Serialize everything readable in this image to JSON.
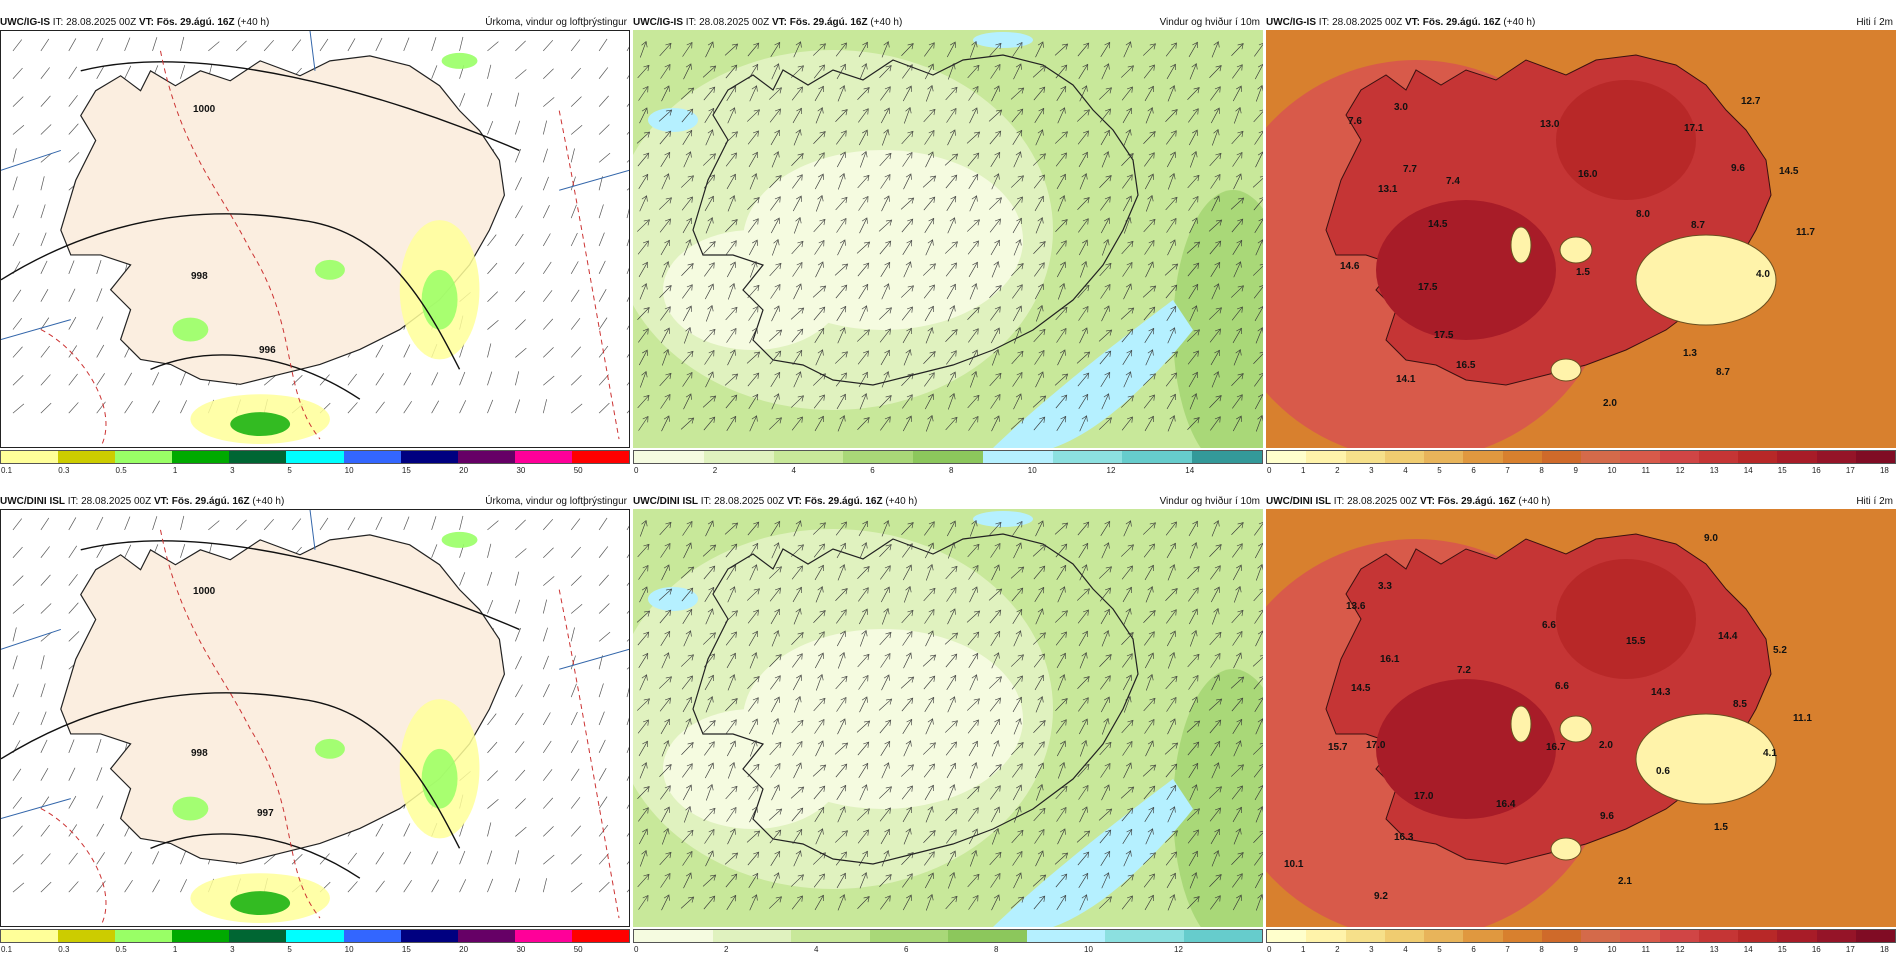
{
  "panels": [
    {
      "model": "UWC/IG-IS",
      "it": "IT: 28.08.2025 00Z",
      "vt": "VT: Fös. 29.ágú. 16Z",
      "lead": "(+40 h)",
      "title": "Úrkoma, vindur og loftþrýstingur",
      "colorbar": [
        "#ffff99",
        "#cccc00",
        "#99ff66",
        "#00aa00",
        "#006633",
        "#00ffff",
        "#3366ff",
        "#000080",
        "#660066",
        "#ff0099",
        "#ff0000"
      ],
      "ticks": [
        "0.1",
        "0.3",
        "0.5",
        "1",
        "3",
        "5",
        "10",
        "15",
        "20",
        "30",
        "50"
      ],
      "labels": [
        "996",
        "1000",
        "998"
      ]
    },
    {
      "model": "UWC/IG-IS",
      "it": "IT: 28.08.2025 00Z",
      "vt": "VT: Fös. 29.ágú. 16Z",
      "lead": "(+40 h)",
      "title": "Vindur og hviður í 10m",
      "colorbar": [
        "#f5fbe0",
        "#e0f2bf",
        "#c8e89a",
        "#a9d878",
        "#8cc75c",
        "#b5f0ff",
        "#8ce0e0",
        "#66cccc",
        "#339999"
      ],
      "ticks": [
        "0",
        "2",
        "4",
        "6",
        "8",
        "10",
        "12",
        "14"
      ],
      "labels": []
    },
    {
      "model": "UWC/IG-IS",
      "it": "IT: 28.08.2025 00Z",
      "vt": "VT: Fös. 29.ágú. 16Z",
      "lead": "(+40 h)",
      "title": "Hiti í 2m",
      "colorbar": [
        "#ffffcc",
        "#fff3aa",
        "#f6e08a",
        "#f0cc70",
        "#e8b45a",
        "#e0983f",
        "#d8802e",
        "#cf6a2a",
        "#d46a4a",
        "#d85a4a",
        "#d04545",
        "#c53535",
        "#b82828",
        "#a81c28",
        "#951428",
        "#800c24"
      ],
      "ticks": [
        "0",
        "1",
        "2",
        "3",
        "4",
        "5",
        "6",
        "7",
        "8",
        "9",
        "10",
        "11",
        "12",
        "13",
        "14",
        "15",
        "16",
        "17",
        "18"
      ],
      "labels": [
        "7.6",
        "3.0",
        "13.0",
        "17.1",
        "12.7",
        "13.1",
        "7.7",
        "7.4",
        "16.0",
        "9.6",
        "14.5",
        "14.5",
        "8.0",
        "8.7",
        "11.7",
        "14.6",
        "17.5",
        "1.5",
        "4.0",
        "17.5",
        "14.1",
        "16.5",
        "8.7",
        "1.3",
        "2.0"
      ]
    },
    {
      "model": "UWC/DINI ISL",
      "it": "IT: 28.08.2025 00Z",
      "vt": "VT: Fös. 29.ágú. 16Z",
      "lead": "(+40 h)",
      "title": "Úrkoma, vindur og loftþrýstingur",
      "colorbar": [
        "#ffff99",
        "#cccc00",
        "#99ff66",
        "#00aa00",
        "#006633",
        "#00ffff",
        "#3366ff",
        "#000080",
        "#660066",
        "#ff0099",
        "#ff0000"
      ],
      "ticks": [
        "0.1",
        "0.3",
        "0.5",
        "1",
        "3",
        "5",
        "10",
        "15",
        "20",
        "30",
        "50"
      ],
      "labels": [
        "997",
        "1000",
        "998"
      ]
    },
    {
      "model": "UWC/DINI ISL",
      "it": "IT: 28.08.2025 00Z",
      "vt": "VT: Fös. 29.ágú. 16Z",
      "lead": "(+40 h)",
      "title": "Vindur og hviður í 10m",
      "colorbar": [
        "#f5fbe0",
        "#e0f2bf",
        "#c8e89a",
        "#a9d878",
        "#8cc75c",
        "#b5f0ff",
        "#8ce0e0",
        "#66cccc"
      ],
      "ticks": [
        "0",
        "2",
        "4",
        "6",
        "8",
        "10",
        "12"
      ],
      "labels": []
    },
    {
      "model": "UWC/DINI ISL",
      "it": "IT: 28.08.2025 00Z",
      "vt": "VT: Fös. 29.ágú. 16Z",
      "lead": "(+40 h)",
      "title": "Hiti í 2m",
      "colorbar": [
        "#ffffcc",
        "#fff3aa",
        "#f6e08a",
        "#f0cc70",
        "#e8b45a",
        "#e0983f",
        "#d8802e",
        "#cf6a2a",
        "#d46a4a",
        "#d85a4a",
        "#d04545",
        "#c53535",
        "#b82828",
        "#a81c28",
        "#951428",
        "#800c24"
      ],
      "ticks": [
        "0",
        "1",
        "2",
        "3",
        "4",
        "5",
        "6",
        "7",
        "8",
        "9",
        "10",
        "11",
        "12",
        "13",
        "14",
        "15",
        "16",
        "17",
        "18"
      ],
      "labels": [
        "9.0",
        "3.3",
        "13.6",
        "6.6",
        "15.5",
        "14.4",
        "5.2",
        "16.1",
        "7.2",
        "14.5",
        "6.6",
        "14.3",
        "8.5",
        "11.1",
        "15.7",
        "17.0",
        "16.7",
        "2.0",
        "4.1",
        "0.6",
        "17.0",
        "16.4",
        "9.6",
        "1.5",
        "16.3",
        "10.1",
        "2.1",
        "9.2"
      ]
    }
  ]
}
